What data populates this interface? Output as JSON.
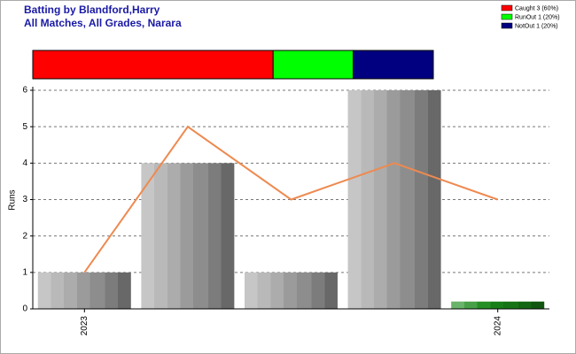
{
  "chart_data": {
    "type": "bar",
    "title": "Batting by Blandford,Harry",
    "subtitle": "All Matches, All Grades, Narara",
    "ylabel": "Runs",
    "categories": [
      "2023",
      null,
      null,
      null,
      "2024"
    ],
    "values": [
      1,
      4,
      1,
      6,
      0.2
    ],
    "colors": [
      "#a8a8a8",
      "#a8a8a8",
      "#a8a8a8",
      "#a8a8a8",
      "#1a8a1a"
    ],
    "line": {
      "color": "#ee8a50",
      "values": [
        1,
        5,
        3,
        4,
        3
      ]
    },
    "breakdown": [
      {
        "name": "Caught 3 (60%)",
        "value": 60,
        "color": "#ff0000"
      },
      {
        "name": "RunOut 1 (20%)",
        "value": 20,
        "color": "#00ff00"
      },
      {
        "name": "NotOut 1 (20%)",
        "value": 20,
        "color": "#000080"
      }
    ],
    "ylim": [
      0,
      6
    ],
    "yticks": [
      0,
      1,
      2,
      3,
      4,
      5,
      6
    ],
    "grid": true
  }
}
